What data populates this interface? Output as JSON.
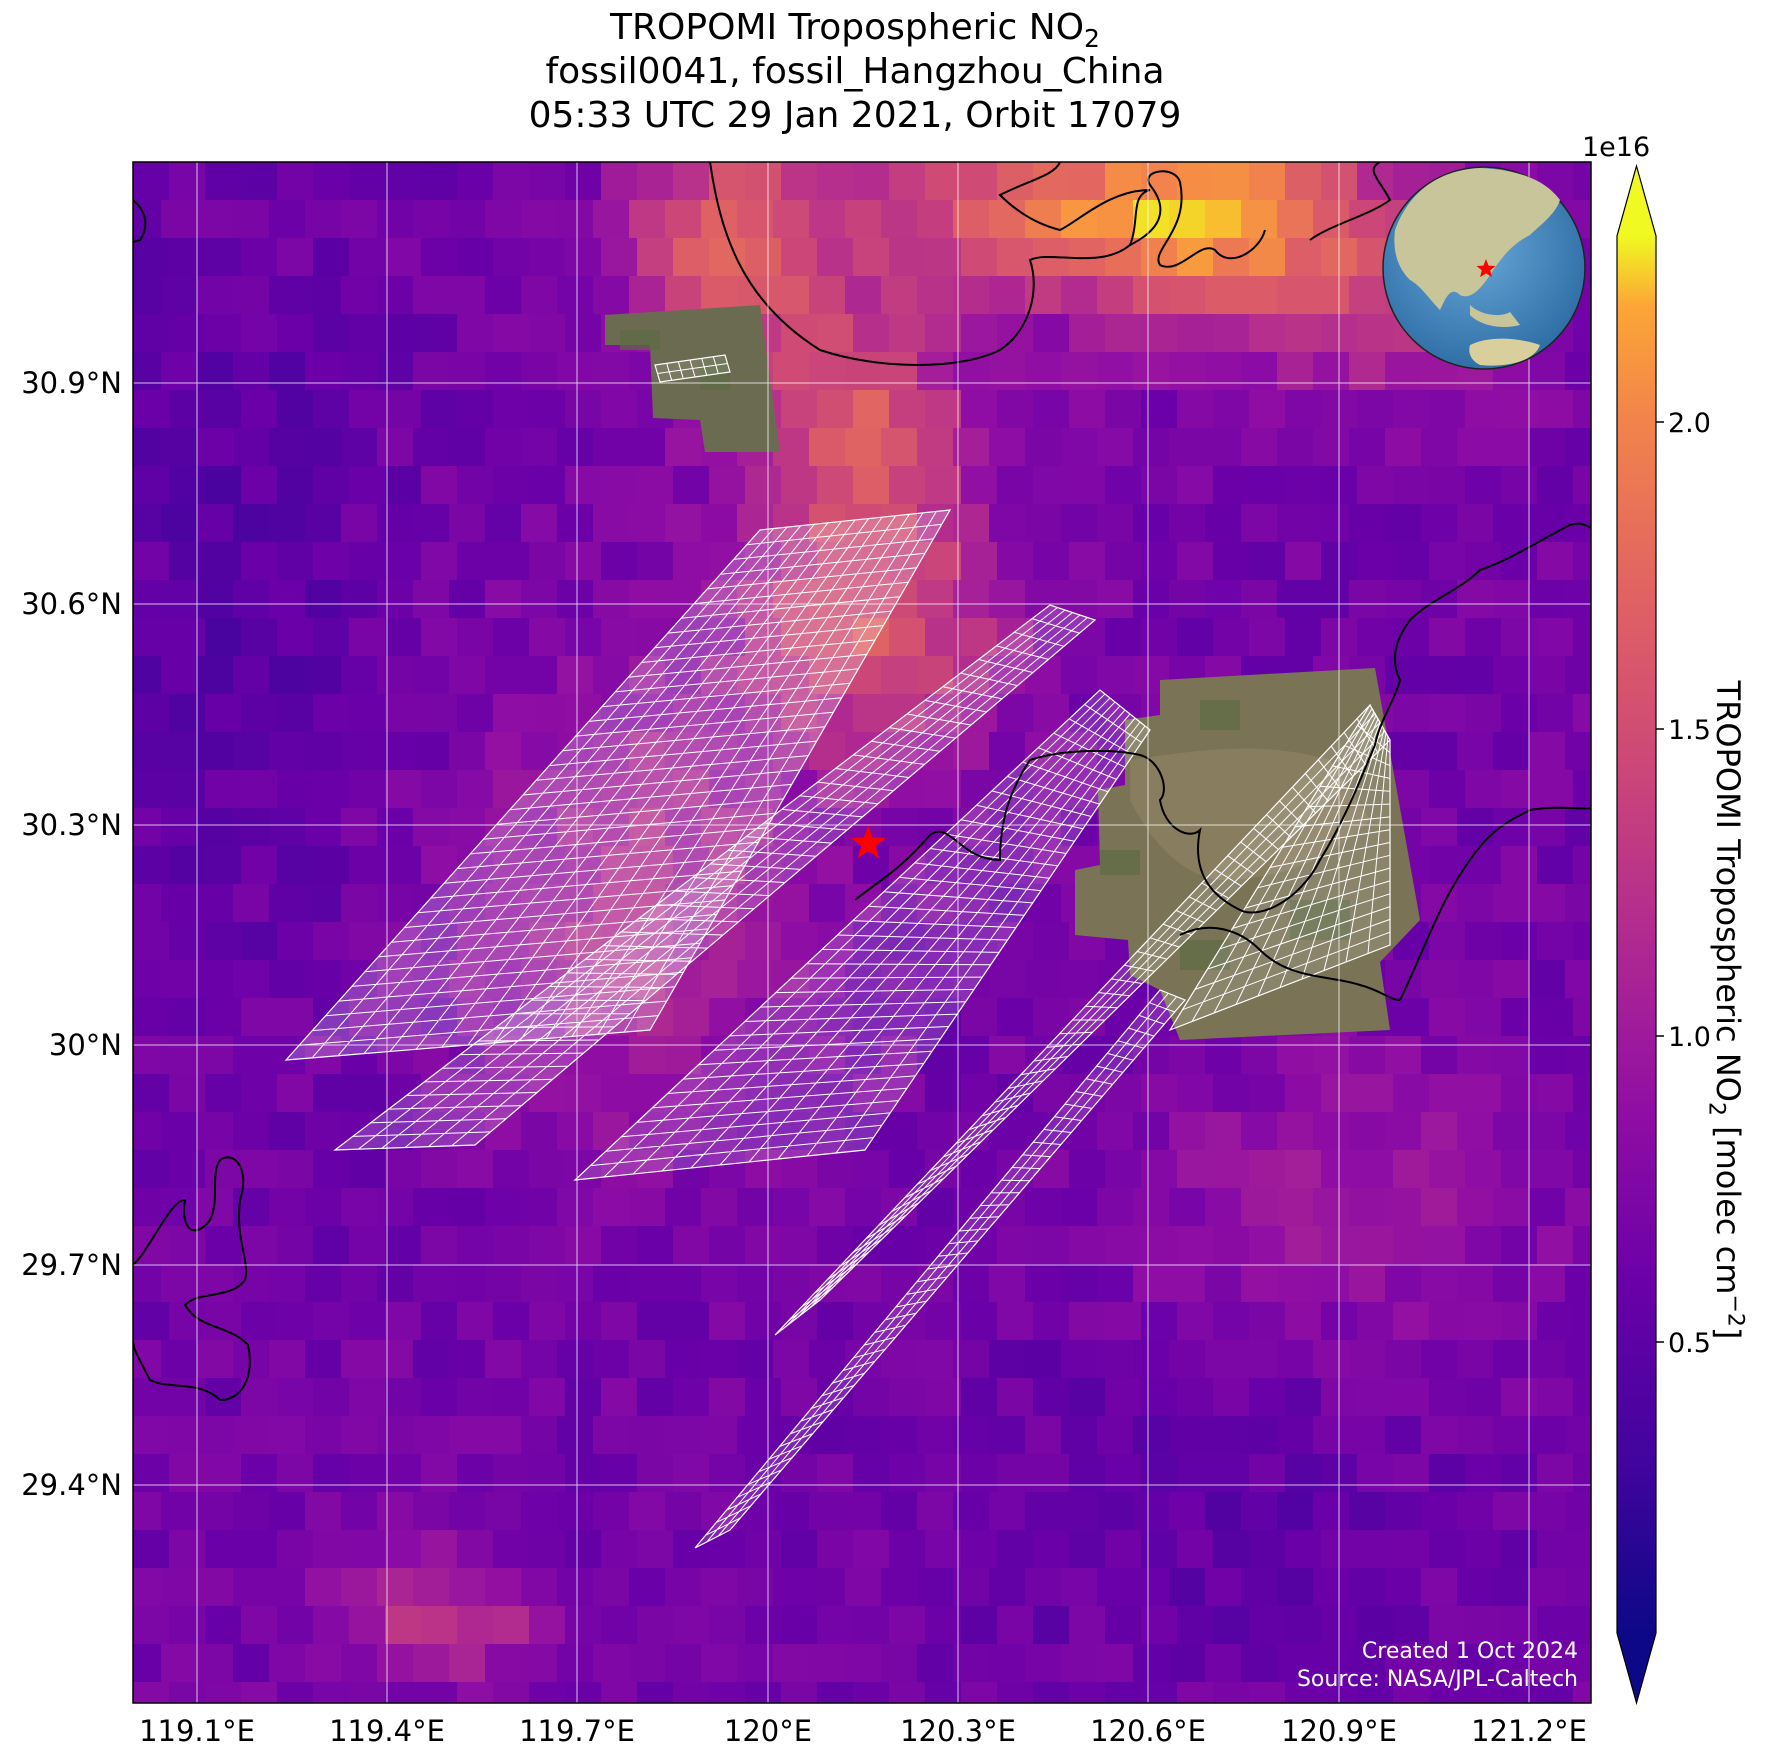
{
  "title": {
    "line1": "TROPOMI Tropospheric NO",
    "line1_sub": "2",
    "line2": "fossil0041, fossil_Hangzhou_China",
    "line3": "05:33 UTC 29 Jan 2021, Orbit 17079"
  },
  "axes": {
    "x_ticks": [
      "119.1°E",
      "119.4°E",
      "119.7°E",
      "120°E",
      "120.3°E",
      "120.6°E",
      "120.9°E",
      "121.2°E"
    ],
    "y_ticks": [
      "30.9°N",
      "30.6°N",
      "30.3°N",
      "30°N",
      "29.7°N",
      "29.4°N"
    ],
    "lon_range": [
      119.0,
      121.3
    ],
    "lat_range": [
      29.13,
      31.21
    ],
    "gridlines": true
  },
  "colorbar": {
    "label_main": "TROPOMI Tropospheric NO",
    "label_sub": "2",
    "label_units_open": " [molec cm",
    "label_units_sup": "−2",
    "label_units_close": "]",
    "exponent_label": "1e16",
    "ticks": [
      "0.5",
      "1.0",
      "1.5",
      "2.0"
    ],
    "colormap": "plasma",
    "extend": "both"
  },
  "map": {
    "site_marker": {
      "lon": 120.16,
      "lat": 30.29,
      "symbol": "star",
      "color": "#ff0000"
    },
    "inset": "globe-centered-on-east-asia",
    "overlays": [
      "OCO-3 target sounding footprints",
      "true-color imagery tiles"
    ]
  },
  "credits": {
    "created": "Created 1 Oct 2024",
    "source": "Source: NASA/JPL-Caltech"
  },
  "colors": {
    "footprint_outline": "#ffffff",
    "coastline": "#000000",
    "star": "#ff0000",
    "globe_ocean": "#4a8fc4",
    "globe_land": "#c9c59a"
  }
}
